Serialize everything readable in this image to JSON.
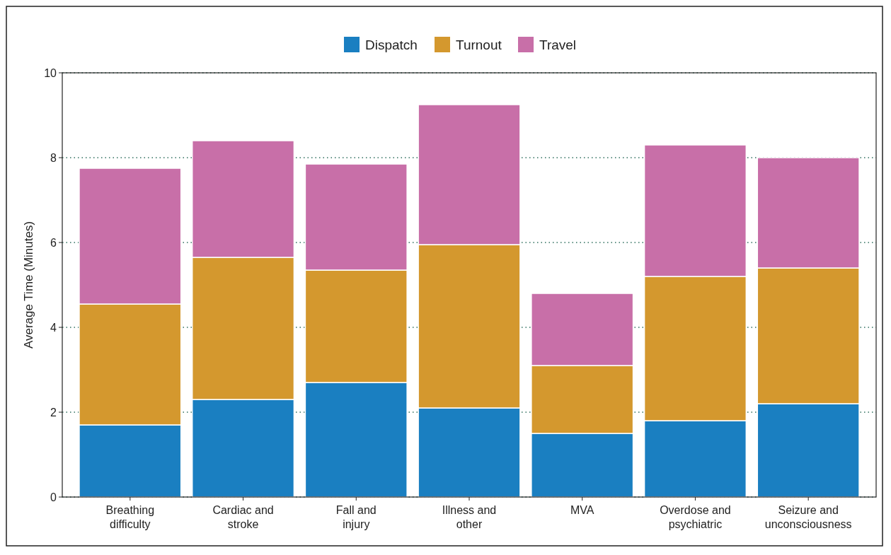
{
  "chart_data": {
    "type": "bar",
    "stacked": true,
    "ylabel": "Average Time (Minutes)",
    "categories": [
      "Breathing difficulty",
      "Cardiac and stroke",
      "Fall and injury",
      "Illness and other",
      "MVA",
      "Overdose and psychiatric",
      "Seizure and unconsciousness"
    ],
    "series": [
      {
        "name": "Dispatch",
        "color": "#1a7fc1",
        "values": [
          1.7,
          2.3,
          2.7,
          2.1,
          1.5,
          1.8,
          2.2
        ]
      },
      {
        "name": "Turnout",
        "color": "#d4982e",
        "values": [
          2.85,
          3.35,
          2.65,
          3.85,
          1.6,
          3.4,
          3.2
        ]
      },
      {
        "name": "Travel",
        "color": "#c86fa8",
        "values": [
          3.2,
          2.75,
          2.5,
          3.3,
          1.7,
          3.1,
          2.6
        ]
      }
    ],
    "ylim": [
      0,
      10
    ],
    "yticks": [
      0,
      2,
      4,
      6,
      8,
      10
    ],
    "grid": "y",
    "legend": "top"
  }
}
